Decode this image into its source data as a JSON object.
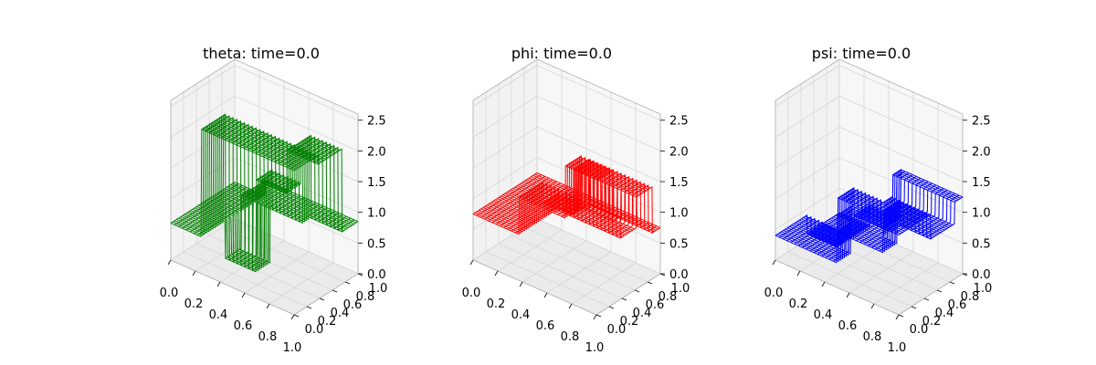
{
  "chart_data": [
    {
      "type": "surface-wireframe",
      "title": "theta: time=0.0",
      "color": "#008000",
      "x_ticks": [
        "0.0",
        "0.2",
        "0.4",
        "0.6",
        "0.8",
        "1.0"
      ],
      "y_ticks": [
        "0.0",
        "0.2",
        "0.4",
        "0.6",
        "0.8",
        "1.0"
      ],
      "z_ticks": [
        "0.0",
        "0.5",
        "1.0",
        "1.5",
        "2.0",
        "2.5"
      ],
      "xlim": [
        0,
        1
      ],
      "ylim": [
        0,
        1
      ],
      "zlim": [
        0,
        2.6
      ],
      "grid": true,
      "z_levels": {
        "x": [
          0,
          0.125,
          0.25,
          0.375,
          0.5,
          0.625,
          0.75,
          0.875,
          1
        ],
        "y": [
          0,
          0.125,
          0.25,
          0.375,
          0.5,
          0.625,
          0.75,
          0.875,
          1
        ],
        "z": [
          [
            0.6,
            0.6,
            2.35,
            2.35,
            2.35,
            2.35,
            2.35,
            2.35,
            2.35
          ],
          [
            0.6,
            0.6,
            2.35,
            2.35,
            2.35,
            2.35,
            2.35,
            2.35,
            2.35
          ],
          [
            0.6,
            0.6,
            2.35,
            2.35,
            2.35,
            2.35,
            2.35,
            2.35,
            2.35
          ],
          [
            0.6,
            0.6,
            0.0,
            0.0,
            1.5,
            1.5,
            2.2,
            2.2,
            2.2
          ],
          [
            0.6,
            0.6,
            0.0,
            0.0,
            1.5,
            1.5,
            2.2,
            2.2,
            2.2
          ],
          [
            0.6,
            0.6,
            0.85,
            0.85,
            0.85,
            0.85,
            2.2,
            2.2,
            2.2
          ],
          [
            0.6,
            0.6,
            0.85,
            0.85,
            0.85,
            0.85,
            0.85,
            0.85,
            0.85
          ],
          [
            0.6,
            0.6,
            0.85,
            0.85,
            0.85,
            0.85,
            0.85,
            0.85,
            0.85
          ],
          [
            0.6,
            0.6,
            0.85,
            0.85,
            0.85,
            0.85,
            0.85,
            0.85,
            0.85
          ]
        ]
      }
    },
    {
      "type": "surface-wireframe",
      "title": "phi: time=0.0",
      "color": "#ff0000",
      "x_ticks": [
        "0.0",
        "0.2",
        "0.4",
        "0.6",
        "0.8",
        "1.0"
      ],
      "y_ticks": [
        "0.0",
        "0.2",
        "0.4",
        "0.6",
        "0.8",
        "1.0"
      ],
      "z_ticks": [
        "0.0",
        "0.5",
        "1.0",
        "1.5",
        "2.0",
        "2.5"
      ],
      "xlim": [
        0,
        1
      ],
      "ylim": [
        0,
        1
      ],
      "zlim": [
        0,
        2.6
      ],
      "grid": true,
      "z_levels": {
        "x": [
          0,
          0.125,
          0.25,
          0.375,
          0.5,
          0.625,
          0.75,
          0.875,
          1
        ],
        "y": [
          0,
          0.125,
          0.25,
          0.375,
          0.5,
          0.625,
          0.75,
          0.875,
          1
        ],
        "z": [
          [
            0.75,
            0.75,
            0.75,
            1.35,
            1.35,
            1.35,
            2.2,
            2.2,
            2.2
          ],
          [
            0.75,
            0.75,
            0.75,
            1.35,
            1.35,
            1.35,
            2.2,
            2.2,
            2.2
          ],
          [
            0.75,
            0.75,
            0.75,
            1.35,
            1.35,
            1.35,
            1.35,
            1.35,
            1.35
          ],
          [
            0.75,
            0.75,
            0.75,
            1.0,
            1.0,
            1.0,
            1.0,
            1.0,
            1.0
          ],
          [
            0.75,
            0.75,
            0.75,
            1.0,
            1.0,
            1.0,
            1.0,
            1.0,
            1.0
          ],
          [
            0.75,
            0.75,
            0.75,
            0.75,
            1.5,
            1.5,
            1.5,
            1.5,
            1.5
          ],
          [
            0.75,
            0.75,
            0.75,
            0.75,
            1.5,
            1.5,
            1.5,
            1.5,
            1.5
          ],
          [
            0.75,
            0.75,
            0.75,
            0.75,
            0.75,
            0.75,
            0.75,
            0.75,
            0.75
          ],
          [
            0.75,
            0.75,
            0.75,
            0.75,
            0.75,
            0.75,
            0.75,
            0.75,
            0.75
          ]
        ]
      }
    },
    {
      "type": "surface-wireframe",
      "title": "psi: time=0.0",
      "color": "#0000ff",
      "x_ticks": [
        "0.0",
        "0.2",
        "0.4",
        "0.6",
        "0.8",
        "1.0"
      ],
      "y_ticks": [
        "0.0",
        "0.2",
        "0.4",
        "0.6",
        "0.8",
        "1.0"
      ],
      "z_ticks": [
        "0.0",
        "0.5",
        "1.0",
        "1.5",
        "2.0",
        "2.5"
      ],
      "xlim": [
        0,
        1
      ],
      "ylim": [
        0,
        1
      ],
      "zlim": [
        0,
        2.6
      ],
      "grid": true,
      "z_levels": {
        "x": [
          0,
          0.125,
          0.25,
          0.375,
          0.5,
          0.625,
          0.75,
          0.875,
          1
        ],
        "y": [
          0,
          0.125,
          0.25,
          0.375,
          0.5,
          0.625,
          0.75,
          0.875,
          1
        ],
        "z": [
          [
            0.4,
            0.4,
            0.4,
            0.4,
            0.9,
            0.9,
            0.9,
            1.3,
            1.3
          ],
          [
            0.4,
            0.4,
            0.4,
            0.4,
            0.9,
            0.9,
            0.9,
            1.3,
            1.3
          ],
          [
            0.4,
            0.4,
            0.4,
            0.9,
            0.9,
            0.9,
            1.3,
            1.3,
            1.3
          ],
          [
            0.4,
            0.4,
            0.4,
            0.9,
            0.9,
            0.9,
            1.3,
            1.3,
            1.3
          ],
          [
            0.1,
            0.1,
            0.9,
            0.9,
            0.9,
            0.9,
            0.9,
            0.9,
            0.9
          ],
          [
            0.1,
            0.1,
            0.9,
            0.9,
            0.9,
            0.9,
            0.9,
            0.9,
            0.9
          ],
          [
            0.1,
            0.1,
            0.45,
            0.45,
            0.9,
            0.9,
            0.9,
            0.9,
            0.9
          ],
          [
            0.1,
            0.1,
            0.45,
            0.45,
            1.25,
            1.25,
            1.25,
            1.25,
            1.25
          ],
          [
            0.1,
            0.1,
            0.45,
            0.45,
            1.25,
            1.25,
            1.25,
            1.25,
            1.25
          ]
        ]
      }
    }
  ]
}
